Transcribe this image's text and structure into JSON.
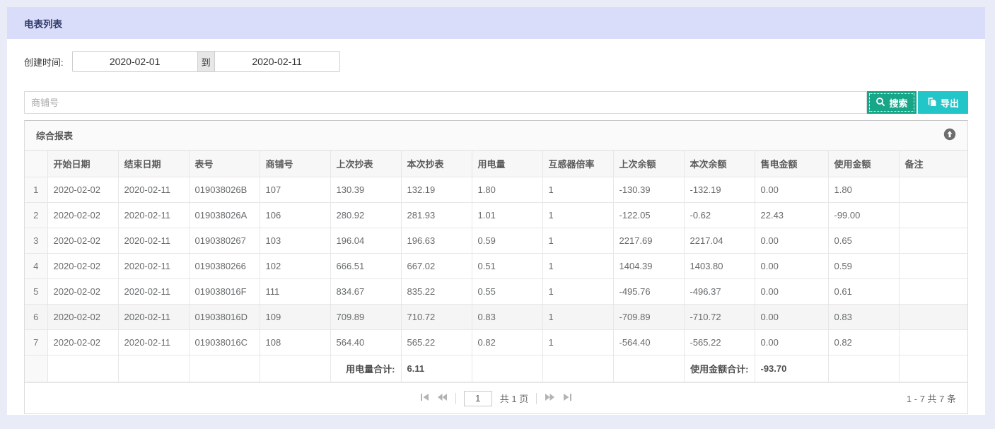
{
  "header": {
    "title": "电表列表"
  },
  "filter": {
    "label": "创建时间:",
    "date_from": "2020-02-01",
    "to_label": "到",
    "date_to": "2020-02-11"
  },
  "toolbar": {
    "search_placeholder": "商铺号",
    "search_label": "搜索",
    "export_label": "导出"
  },
  "panel": {
    "title": "综合报表",
    "collapse_icon": "arrow-up-circle-icon"
  },
  "table": {
    "columns": [
      "开始日期",
      "结束日期",
      "表号",
      "商铺号",
      "上次抄表",
      "本次抄表",
      "用电量",
      "互感器倍率",
      "上次余额",
      "本次余额",
      "售电金额",
      "使用金额",
      "备注"
    ],
    "highlighted_row": "6",
    "rows": [
      {
        "idx": "1",
        "cells": [
          "2020-02-02",
          "2020-02-11",
          "019038026B",
          "107",
          "130.39",
          "132.19",
          "1.80",
          "1",
          "-130.39",
          "-132.19",
          "0.00",
          "1.80",
          ""
        ]
      },
      {
        "idx": "2",
        "cells": [
          "2020-02-02",
          "2020-02-11",
          "019038026A",
          "106",
          "280.92",
          "281.93",
          "1.01",
          "1",
          "-122.05",
          "-0.62",
          "22.43",
          "-99.00",
          ""
        ]
      },
      {
        "idx": "3",
        "cells": [
          "2020-02-02",
          "2020-02-11",
          "0190380267",
          "103",
          "196.04",
          "196.63",
          "0.59",
          "1",
          "2217.69",
          "2217.04",
          "0.00",
          "0.65",
          ""
        ]
      },
      {
        "idx": "4",
        "cells": [
          "2020-02-02",
          "2020-02-11",
          "0190380266",
          "102",
          "666.51",
          "667.02",
          "0.51",
          "1",
          "1404.39",
          "1403.80",
          "0.00",
          "0.59",
          ""
        ]
      },
      {
        "idx": "5",
        "cells": [
          "2020-02-02",
          "2020-02-11",
          "019038016F",
          "111",
          "834.67",
          "835.22",
          "0.55",
          "1",
          "-495.76",
          "-496.37",
          "0.00",
          "0.61",
          ""
        ]
      },
      {
        "idx": "6",
        "cells": [
          "2020-02-02",
          "2020-02-11",
          "019038016D",
          "109",
          "709.89",
          "710.72",
          "0.83",
          "1",
          "-709.89",
          "-710.72",
          "0.00",
          "0.83",
          ""
        ]
      },
      {
        "idx": "7",
        "cells": [
          "2020-02-02",
          "2020-02-11",
          "019038016C",
          "108",
          "564.40",
          "565.22",
          "0.82",
          "1",
          "-564.40",
          "-565.22",
          "0.00",
          "0.82",
          ""
        ]
      }
    ],
    "summary": {
      "usage_total_label": "用电量合计:",
      "usage_total_value": "6.11",
      "amount_total_label": "使用金额合计:",
      "amount_total_value": "-93.70"
    }
  },
  "pagination": {
    "page_input_value": "1",
    "total_pages_label": "共 1 页",
    "range_info": "1 - 7  共 7 条"
  },
  "colors": {
    "page_bg": "#e9ebf7",
    "title_bar_bg": "#d9ddfa",
    "title_text": "#2f3a68",
    "search_button_bg": "#18a689",
    "export_button_bg": "#23c6c8",
    "panel_header_bg": "#fafafa",
    "row_hover_bg": "#f5f5f5",
    "table_border": "#e7e7e7"
  }
}
